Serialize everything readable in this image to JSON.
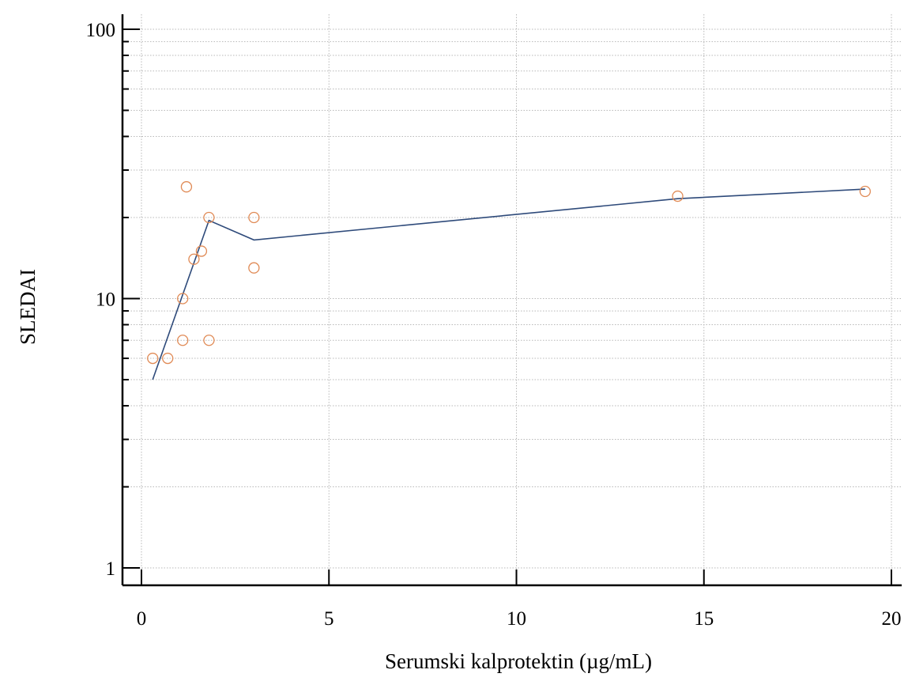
{
  "chart_data": {
    "type": "scatter",
    "title": "",
    "xlabel": "Serumski kalprotektin (µg/mL)",
    "ylabel": "SLEDAI",
    "xlim": [
      -0.5,
      20.3
    ],
    "ylim": [
      1,
      100
    ],
    "yscale": "log",
    "xticks": [
      0,
      5,
      10,
      15,
      20
    ],
    "xtick_labels": [
      "0",
      "5",
      "10",
      "15",
      "20"
    ],
    "yticks": [
      1,
      10,
      100
    ],
    "ytick_labels": [
      "1",
      "10",
      "100"
    ],
    "grid": true,
    "legend": "none",
    "colors": {
      "points": "#e08a55",
      "line": "#2e4a7a",
      "axis": "#000000",
      "grid": "#b8b8b8"
    },
    "series": [
      {
        "type": "scatter",
        "x": [
          0.3,
          0.7,
          1.1,
          1.1,
          1.2,
          1.4,
          1.6,
          1.8,
          1.8,
          3.0,
          3.0,
          14.3,
          19.3
        ],
        "y": [
          6,
          6,
          7,
          10,
          26,
          14,
          15,
          7,
          20,
          20,
          13,
          24,
          25
        ]
      },
      {
        "type": "line",
        "x": [
          0.3,
          1.8,
          3.0,
          14.3,
          19.3
        ],
        "y": [
          5,
          19.5,
          16.5,
          23.5,
          25.5
        ]
      }
    ]
  }
}
